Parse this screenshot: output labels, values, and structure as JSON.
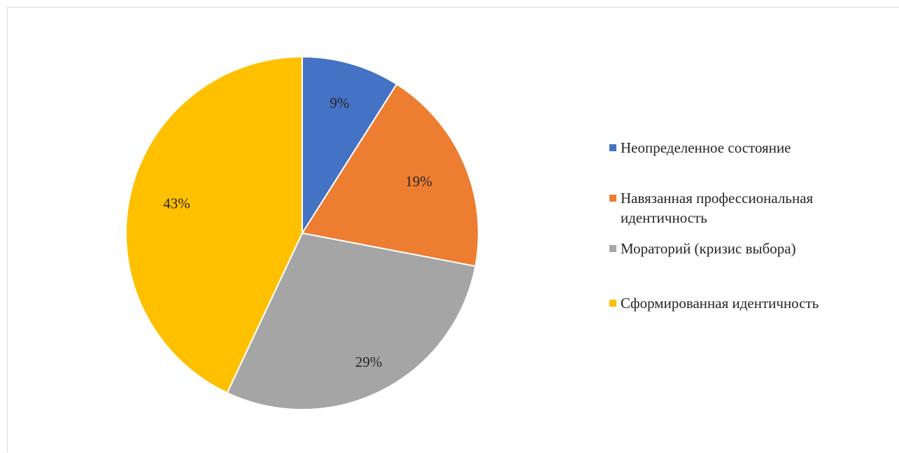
{
  "chart_data": {
    "type": "pie",
    "title": "",
    "categories": [
      "Неопределенное состояние",
      "Навязанная профессиональная идентичность",
      "Мораторий (кризис выбора)",
      "Сформированная идентичность"
    ],
    "values": [
      9,
      19,
      29,
      43
    ],
    "data_labels": [
      "9%",
      "19%",
      "29%",
      "43%"
    ],
    "colors": [
      "#4472C4",
      "#ED7D31",
      "#A5A5A5",
      "#FFC000"
    ],
    "legend_placement": "right"
  }
}
